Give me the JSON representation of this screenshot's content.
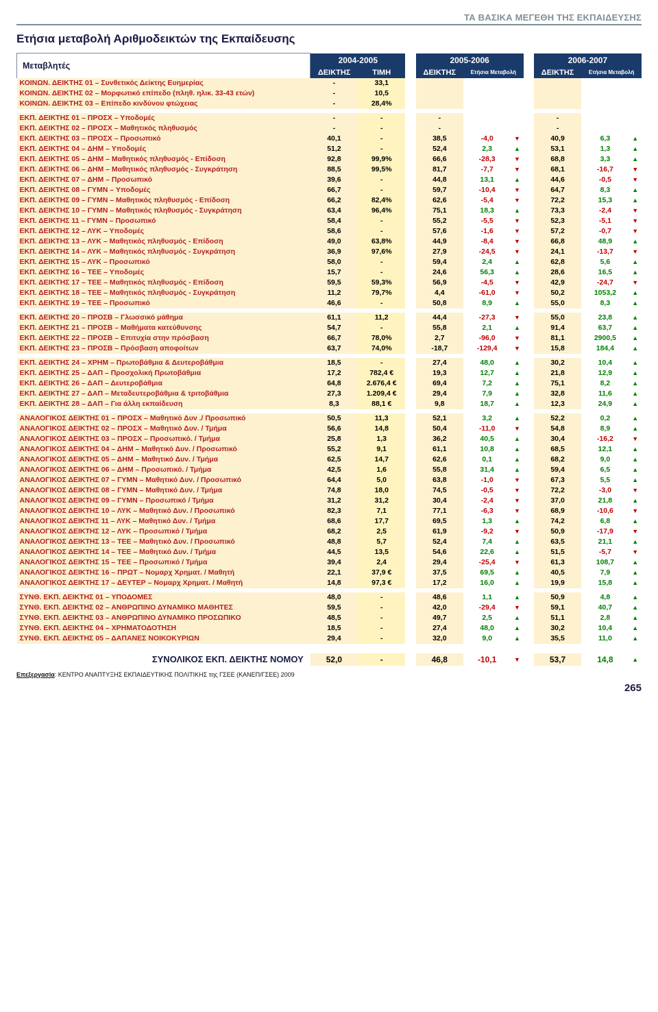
{
  "header": {
    "breadcrumb": "ΤΑ ΒΑΣΙΚΑ ΜΕΓΕΘΗ ΤΗΣ ΕΚΠΑΙΔΕΥΣΗΣ",
    "title": "Ετήσια μεταβολή Αριθμοδεικτών της Εκπαίδευσης",
    "variables_label": "Μεταβλητές",
    "periods": [
      "2004-2005",
      "2005-2006",
      "2006-2007"
    ],
    "sub": {
      "deiktis": "ΔΕΙΚΤΗΣ",
      "timi": "ΤΙΜΗ",
      "etisia": "Ετήσια Μεταβολή"
    }
  },
  "sections": [
    {
      "rows": [
        {
          "label": "ΚΟΙΝΩΝ. ΔΕΙΚΤΗΣ 01 – Συνθετικός Δείκτης Ευημερίας",
          "d1": "-",
          "t1": "33,1"
        },
        {
          "label": "ΚΟΙΝΩΝ. ΔΕΙΚΤΗΣ 02 – Μορφωτικό επίπεδο (πληθ. ηλικ. 33-43 ετών)",
          "d1": "-",
          "t1": "10,5"
        },
        {
          "label": "ΚΟΙΝΩΝ. ΔΕΙΚΤΗΣ 03 – Επίπεδο κινδύνου φτώχειας",
          "d1": "-",
          "t1": "28,4%"
        }
      ]
    },
    {
      "rows": [
        {
          "label": "ΕΚΠ. ΔΕΙΚΤΗΣ 01 – ΠΡΟΣΧ – Υποδομές",
          "d1": "-",
          "t1": "-",
          "d2": "-",
          "d3": "-"
        },
        {
          "label": "ΕΚΠ. ΔΕΙΚΤΗΣ 02 – ΠΡΟΣΧ – Μαθητικός πληθυσμός",
          "d1": "-",
          "t1": "-",
          "d2": "-",
          "d3": "-"
        },
        {
          "label": "ΕΚΠ. ΔΕΙΚΤΗΣ 03 – ΠΡΟΣΧ – Προσωπικό",
          "d1": "40,1",
          "t1": "-",
          "d2": "38,5",
          "m2": "-4,0",
          "a2": "d",
          "d3": "40,9",
          "m3": "6,3",
          "a3": "u"
        },
        {
          "label": "ΕΚΠ. ΔΕΙΚΤΗΣ 04 – ΔΗΜ – Υποδομές",
          "d1": "51,2",
          "t1": "-",
          "d2": "52,4",
          "m2": "2,3",
          "a2": "u",
          "d3": "53,1",
          "m3": "1,3",
          "a3": "u"
        },
        {
          "label": "ΕΚΠ. ΔΕΙΚΤΗΣ 05 – ΔΗΜ – Μαθητικός πληθυσμός - Επίδοση",
          "d1": "92,8",
          "t1": "99,9%",
          "d2": "66,6",
          "m2": "-28,3",
          "a2": "d",
          "d3": "68,8",
          "m3": "3,3",
          "a3": "u"
        },
        {
          "label": "ΕΚΠ. ΔΕΙΚΤΗΣ 06 – ΔΗΜ – Μαθητικός πληθυσμός - Συγκράτηση",
          "d1": "88,5",
          "t1": "99,5%",
          "d2": "81,7",
          "m2": "-7,7",
          "a2": "d",
          "d3": "68,1",
          "m3": "-16,7",
          "a3": "d"
        },
        {
          "label": "ΕΚΠ. ΔΕΙΚΤΗΣ 07 – ΔΗΜ – Προσωπικό",
          "d1": "39,6",
          "t1": "-",
          "d2": "44,8",
          "m2": "13,1",
          "a2": "u",
          "d3": "44,6",
          "m3": "-0,5",
          "a3": "d"
        },
        {
          "label": "ΕΚΠ. ΔΕΙΚΤΗΣ 08 – ΓΥΜΝ – Υποδομές",
          "d1": "66,7",
          "t1": "-",
          "d2": "59,7",
          "m2": "-10,4",
          "a2": "d",
          "d3": "64,7",
          "m3": "8,3",
          "a3": "u"
        },
        {
          "label": "ΕΚΠ. ΔΕΙΚΤΗΣ 09 – ΓΥΜΝ – Μαθητικός πληθυσμός - Επίδοση",
          "d1": "66,2",
          "t1": "82,4%",
          "d2": "62,6",
          "m2": "-5,4",
          "a2": "d",
          "d3": "72,2",
          "m3": "15,3",
          "a3": "u"
        },
        {
          "label": "ΕΚΠ. ΔΕΙΚΤΗΣ 10 – ΓΥΜΝ – Μαθητικός πληθυσμός - Συγκράτηση",
          "d1": "63,4",
          "t1": "96,4%",
          "d2": "75,1",
          "m2": "18,3",
          "a2": "u",
          "d3": "73,3",
          "m3": "-2,4",
          "a3": "d"
        },
        {
          "label": "ΕΚΠ. ΔΕΙΚΤΗΣ 11 – ΓΥΜΝ – Προσωπικό",
          "d1": "58,4",
          "t1": "-",
          "d2": "55,2",
          "m2": "-5,5",
          "a2": "d",
          "d3": "52,3",
          "m3": "-5,1",
          "a3": "d"
        },
        {
          "label": "ΕΚΠ. ΔΕΙΚΤΗΣ 12 – ΛΥΚ – Υποδομές",
          "d1": "58,6",
          "t1": "-",
          "d2": "57,6",
          "m2": "-1,6",
          "a2": "d",
          "d3": "57,2",
          "m3": "-0,7",
          "a3": "d"
        },
        {
          "label": "ΕΚΠ. ΔΕΙΚΤΗΣ 13 – ΛΥΚ – Μαθητικός πληθυσμός - Επίδοση",
          "d1": "49,0",
          "t1": "63,8%",
          "d2": "44,9",
          "m2": "-8,4",
          "a2": "d",
          "d3": "66,8",
          "m3": "48,9",
          "a3": "u"
        },
        {
          "label": "ΕΚΠ. ΔΕΙΚΤΗΣ 14 – ΛΥΚ – Μαθητικός πληθυσμός - Συγκράτηση",
          "d1": "36,9",
          "t1": "97,6%",
          "d2": "27,9",
          "m2": "-24,5",
          "a2": "d",
          "d3": "24,1",
          "m3": "-13,7",
          "a3": "d"
        },
        {
          "label": "ΕΚΠ. ΔΕΙΚΤΗΣ 15 – ΛΥΚ – Προσωπικό",
          "d1": "58,0",
          "t1": "-",
          "d2": "59,4",
          "m2": "2,4",
          "a2": "u",
          "d3": "62,8",
          "m3": "5,6",
          "a3": "u"
        },
        {
          "label": "ΕΚΠ. ΔΕΙΚΤΗΣ 16 – ΤΕΕ – Υποδομές",
          "d1": "15,7",
          "t1": "-",
          "d2": "24,6",
          "m2": "56,3",
          "a2": "u",
          "d3": "28,6",
          "m3": "16,5",
          "a3": "u"
        },
        {
          "label": "ΕΚΠ. ΔΕΙΚΤΗΣ 17 – ΤΕΕ – Μαθητικός πληθυσμός - Επίδοση",
          "d1": "59,5",
          "t1": "59,3%",
          "d2": "56,9",
          "m2": "-4,5",
          "a2": "d",
          "d3": "42,9",
          "m3": "-24,7",
          "a3": "d"
        },
        {
          "label": "ΕΚΠ. ΔΕΙΚΤΗΣ 18 – ΤΕΕ – Μαθητικός πληθυσμός - Συγκράτηση",
          "d1": "11,2",
          "t1": "79,7%",
          "d2": "4,4",
          "m2": "-61,0",
          "a2": "d",
          "d3": "50,2",
          "m3": "1053,2",
          "a3": "u"
        },
        {
          "label": "ΕΚΠ. ΔΕΙΚΤΗΣ 19 – ΤΕΕ – Προσωπικό",
          "d1": "46,6",
          "t1": "-",
          "d2": "50,8",
          "m2": "8,9",
          "a2": "u",
          "d3": "55,0",
          "m3": "8,3",
          "a3": "u"
        }
      ]
    },
    {
      "rows": [
        {
          "label": "ΕΚΠ. ΔΕΙΚΤΗΣ 20 – ΠΡΟΣΒ – Γλωσσικό μάθημα",
          "d1": "61,1",
          "t1": "11,2",
          "d2": "44,4",
          "m2": "-27,3",
          "a2": "d",
          "d3": "55,0",
          "m3": "23,8",
          "a3": "u"
        },
        {
          "label": "ΕΚΠ. ΔΕΙΚΤΗΣ 21 – ΠΡΟΣΒ – Μαθήματα κατεύθυνσης",
          "d1": "54,7",
          "t1": "-",
          "d2": "55,8",
          "m2": "2,1",
          "a2": "u",
          "d3": "91,4",
          "m3": "63,7",
          "a3": "u"
        },
        {
          "label": "ΕΚΠ. ΔΕΙΚΤΗΣ 22 – ΠΡΟΣΒ – Επιτυχία στην πρόσβαση",
          "d1": "66,7",
          "t1": "78,0%",
          "d2": "2,7",
          "m2": "-96,0",
          "a2": "d",
          "d3": "81,1",
          "m3": "2900,5",
          "a3": "u"
        },
        {
          "label": "ΕΚΠ. ΔΕΙΚΤΗΣ 23 – ΠΡΟΣΒ – Πρόσβαση αποφοίτων",
          "d1": "63,7",
          "t1": "74,0%",
          "d2": "-18,7",
          "m2": "-129,4",
          "a2": "d",
          "d3": "15,8",
          "m3": "184,4",
          "a3": "u"
        }
      ]
    },
    {
      "rows": [
        {
          "label": "ΕΚΠ. ΔΕΙΚΤΗΣ 24 – ΧΡΗΜ – Πρωτοβάθμια & Δευτεροβάθμια",
          "d1": "18,5",
          "t1": "-",
          "d2": "27,4",
          "m2": "48,0",
          "a2": "u",
          "d3": "30,2",
          "m3": "10,4",
          "a3": "u"
        },
        {
          "label": "ΕΚΠ. ΔΕΙΚΤΗΣ 25 – ΔΑΠ – Προσχολική Πρωτοβάθμια",
          "d1": "17,2",
          "t1": "782,4 €",
          "d2": "19,3",
          "m2": "12,7",
          "a2": "u",
          "d3": "21,8",
          "m3": "12,9",
          "a3": "u"
        },
        {
          "label": "ΕΚΠ. ΔΕΙΚΤΗΣ 26 – ΔΑΠ – Δευτεροβάθμια",
          "d1": "64,8",
          "t1": "2.676,4 €",
          "d2": "69,4",
          "m2": "7,2",
          "a2": "u",
          "d3": "75,1",
          "m3": "8,2",
          "a3": "u"
        },
        {
          "label": "ΕΚΠ. ΔΕΙΚΤΗΣ 27 – ΔΑΠ – Μεταδευτεροβάθμια & τριτοβάθμια",
          "d1": "27,3",
          "t1": "1.209,4 €",
          "d2": "29,4",
          "m2": "7,9",
          "a2": "u",
          "d3": "32,8",
          "m3": "11,6",
          "a3": "u"
        },
        {
          "label": "ΕΚΠ. ΔΕΙΚΤΗΣ 28 – ΔΑΠ – Για άλλη εκπαίδευση",
          "d1": "8,3",
          "t1": "88,1 €",
          "d2": "9,8",
          "m2": "18,7",
          "a2": "u",
          "d3": "12,3",
          "m3": "24,9",
          "a3": "u"
        }
      ]
    },
    {
      "rows": [
        {
          "label": "ΑΝΑΛΟΓΙΚΟΣ ΔΕΙΚΤΗΣ 01 – ΠΡΟΣΧ – Μαθητικό Δυν ./ Προσωπικό",
          "d1": "50,5",
          "t1": "11,3",
          "d2": "52,1",
          "m2": "3,2",
          "a2": "u",
          "d3": "52,2",
          "m3": "0,2",
          "a3": "u"
        },
        {
          "label": "ΑΝΑΛΟΓΙΚΟΣ ΔΕΙΚΤΗΣ 02 – ΠΡΟΣΧ – Μαθητικό Δυν. / Τμήμα",
          "d1": "56,6",
          "t1": "14,8",
          "d2": "50,4",
          "m2": "-11,0",
          "a2": "d",
          "d3": "54,8",
          "m3": "8,9",
          "a3": "u"
        },
        {
          "label": "ΑΝΑΛΟΓΙΚΟΣ ΔΕΙΚΤΗΣ 03 – ΠΡΟΣΧ – Προσωπικό. / Τμήμα",
          "d1": "25,8",
          "t1": "1,3",
          "d2": "36,2",
          "m2": "40,5",
          "a2": "u",
          "d3": "30,4",
          "m3": "-16,2",
          "a3": "d"
        },
        {
          "label": "ΑΝΑΛΟΓΙΚΟΣ ΔΕΙΚΤΗΣ 04 – ΔΗΜ – Μαθητικό Δυν. / Προσωπικό",
          "d1": "55,2",
          "t1": "9,1",
          "d2": "61,1",
          "m2": "10,8",
          "a2": "u",
          "d3": "68,5",
          "m3": "12,1",
          "a3": "u"
        },
        {
          "label": "ΑΝΑΛΟΓΙΚΟΣ ΔΕΙΚΤΗΣ 05 – ΔΗΜ – Μαθητικό Δυν. / Τμήμα",
          "d1": "62,5",
          "t1": "14,7",
          "d2": "62,6",
          "m2": "0,1",
          "a2": "u",
          "d3": "68,2",
          "m3": "9,0",
          "a3": "u"
        },
        {
          "label": "ΑΝΑΛΟΓΙΚΟΣ ΔΕΙΚΤΗΣ 06 – ΔΗΜ – Προσωπικό. / Τμήμα",
          "d1": "42,5",
          "t1": "1,6",
          "d2": "55,8",
          "m2": "31,4",
          "a2": "u",
          "d3": "59,4",
          "m3": "6,5",
          "a3": "u"
        },
        {
          "label": "ΑΝΑΛΟΓΙΚΟΣ ΔΕΙΚΤΗΣ 07 – ΓΥΜΝ – Μαθητικό Δυν. / Προσωπικό",
          "d1": "64,4",
          "t1": "5,0",
          "d2": "63,8",
          "m2": "-1,0",
          "a2": "d",
          "d3": "67,3",
          "m3": "5,5",
          "a3": "u"
        },
        {
          "label": "ΑΝΑΛΟΓΙΚΟΣ ΔΕΙΚΤΗΣ 08 – ΓΥΜΝ – Μαθητικό Δυν. / Τμήμα",
          "d1": "74,8",
          "t1": "18,0",
          "d2": "74,5",
          "m2": "-0,5",
          "a2": "d",
          "d3": "72,2",
          "m3": "-3,0",
          "a3": "d"
        },
        {
          "label": "ΑΝΑΛΟΓΙΚΟΣ ΔΕΙΚΤΗΣ 09 – ΓΥΜΝ – Προσωπικό / Τμήμα",
          "d1": "31,2",
          "t1": "31,2",
          "d2": "30,4",
          "m2": "-2,4",
          "a2": "d",
          "d3": "37,0",
          "m3": "21,8",
          "a3": "u"
        },
        {
          "label": "ΑΝΑΛΟΓΙΚΟΣ ΔΕΙΚΤΗΣ 10 – ΛΥΚ – Μαθητικό Δυν. / Προσωπικό",
          "d1": "82,3",
          "t1": "7,1",
          "d2": "77,1",
          "m2": "-6,3",
          "a2": "d",
          "d3": "68,9",
          "m3": "-10,6",
          "a3": "d"
        },
        {
          "label": "ΑΝΑΛΟΓΙΚΟΣ ΔΕΙΚΤΗΣ 11 – ΛΥΚ – Μαθητικό Δυν. / Τμήμα",
          "d1": "68,6",
          "t1": "17,7",
          "d2": "69,5",
          "m2": "1,3",
          "a2": "u",
          "d3": "74,2",
          "m3": "6,8",
          "a3": "u"
        },
        {
          "label": "ΑΝΑΛΟΓΙΚΟΣ ΔΕΙΚΤΗΣ 12 – ΛΥΚ – Προσωπικό / Τμήμα",
          "d1": "68,2",
          "t1": "2,5",
          "d2": "61,9",
          "m2": "-9,2",
          "a2": "d",
          "d3": "50,9",
          "m3": "-17,9",
          "a3": "d"
        },
        {
          "label": "ΑΝΑΛΟΓΙΚΟΣ ΔΕΙΚΤΗΣ 13 – ΤΕΕ – Μαθητικό Δυν. / Προσωπικό",
          "d1": "48,8",
          "t1": "5,7",
          "d2": "52,4",
          "m2": "7,4",
          "a2": "u",
          "d3": "63,5",
          "m3": "21,1",
          "a3": "u"
        },
        {
          "label": "ΑΝΑΛΟΓΙΚΟΣ ΔΕΙΚΤΗΣ 14 – ΤΕΕ – Μαθητικό Δυν. / Τμήμα",
          "d1": "44,5",
          "t1": "13,5",
          "d2": "54,6",
          "m2": "22,6",
          "a2": "u",
          "d3": "51,5",
          "m3": "-5,7",
          "a3": "d"
        },
        {
          "label": "ΑΝΑΛΟΓΙΚΟΣ ΔΕΙΚΤΗΣ 15 – ΤΕΕ – Προσωπικό / Τμήμα",
          "d1": "39,4",
          "t1": "2,4",
          "d2": "29,4",
          "m2": "-25,4",
          "a2": "d",
          "d3": "61,3",
          "m3": "108,7",
          "a3": "u"
        },
        {
          "label": "ΑΝΑΛΟΓΙΚΟΣ ΔΕΙΚΤΗΣ 16 – ΠΡΩΤ – Νομαρχ Χρηματ. / Μαθητή",
          "d1": "22,1",
          "t1": "37,9 €",
          "d2": "37,5",
          "m2": "69,5",
          "a2": "u",
          "d3": "40,5",
          "m3": "7,9",
          "a3": "u"
        },
        {
          "label": "ΑΝΑΛΟΓΙΚΟΣ ΔΕΙΚΤΗΣ 17 – ΔΕΥΤΕΡ – Νομαρχ Χρηματ. / Μαθητή",
          "d1": "14,8",
          "t1": "97,3 €",
          "d2": "17,2",
          "m2": "16,0",
          "a2": "u",
          "d3": "19,9",
          "m3": "15,8",
          "a3": "u"
        }
      ]
    },
    {
      "rows": [
        {
          "label": "ΣΥΝΘ. ΕΚΠ. ΔΕΙΚΤΗΣ 01 – ΥΠΟΔΟΜΕΣ",
          "d1": "48,0",
          "t1": "-",
          "d2": "48,6",
          "m2": "1,1",
          "a2": "u",
          "d3": "50,9",
          "m3": "4,8",
          "a3": "u"
        },
        {
          "label": "ΣΥΝΘ. ΕΚΠ. ΔΕΙΚΤΗΣ 02 – ΑΝΘΡΩΠΙΝΟ ΔΥΝΑΜΙΚΟ ΜΑΘΗΤΕΣ",
          "d1": "59,5",
          "t1": "-",
          "d2": "42,0",
          "m2": "-29,4",
          "a2": "d",
          "d3": "59,1",
          "m3": "40,7",
          "a3": "u"
        },
        {
          "label": "ΣΥΝΘ. ΕΚΠ. ΔΕΙΚΤΗΣ 03 – ΑΝΘΡΩΠΙΝΟ ΔΥΝΑΜΙΚΟ ΠΡΟΣΩΠΙΚΟ",
          "d1": "48,5",
          "t1": "-",
          "d2": "49,7",
          "m2": "2,5",
          "a2": "u",
          "d3": "51,1",
          "m3": "2,8",
          "a3": "u"
        },
        {
          "label": "ΣΥΝΘ. ΕΚΠ. ΔΕΙΚΤΗΣ 04 – ΧΡΗΜΑΤΟΔΟΤΗΣΗ",
          "d1": "18,5",
          "t1": "-",
          "d2": "27,4",
          "m2": "48,0",
          "a2": "u",
          "d3": "30,2",
          "m3": "10,4",
          "a3": "u"
        },
        {
          "label": "ΣΥΝΘ. ΕΚΠ. ΔΕΙΚΤΗΣ 05 – ΔΑΠΑΝΕΣ ΝΟΙΚΟΚΥΡΙΩΝ",
          "d1": "29,4",
          "t1": "-",
          "d2": "32,0",
          "m2": "9,0",
          "a2": "u",
          "d3": "35,5",
          "m3": "11,0",
          "a3": "u"
        }
      ]
    }
  ],
  "summary": {
    "label": "ΣΥΝΟΛΙΚΟΣ ΕΚΠ. ΔΕΙΚΤΗΣ ΝΟΜΟΥ",
    "d1": "52,0",
    "t1": "-",
    "d2": "46,8",
    "m2": "-10,1",
    "a2": "d",
    "d3": "53,7",
    "m3": "14,8",
    "a3": "u"
  },
  "footer": {
    "credit_prefix": "Επεξεργασία",
    "credit_text": ": ΚΕΝΤΡΟ ΑΝΑΠΤΥΞΗΣ ΕΚΠΑΙΔΕΥΤΙΚΗΣ ΠΟΛΙΤΙΚΗΣ της ΓΣΕΕ (ΚΑΝΕΠ/ΓΣΕΕ) 2009",
    "page": "265"
  },
  "colors": {
    "header_bar": "#1a3a6a",
    "label_bg": "#fdf1cf",
    "value_bg": "#fff4bf",
    "neg": "#c00000",
    "pos": "#008000",
    "breadcrumb": "#809098"
  }
}
